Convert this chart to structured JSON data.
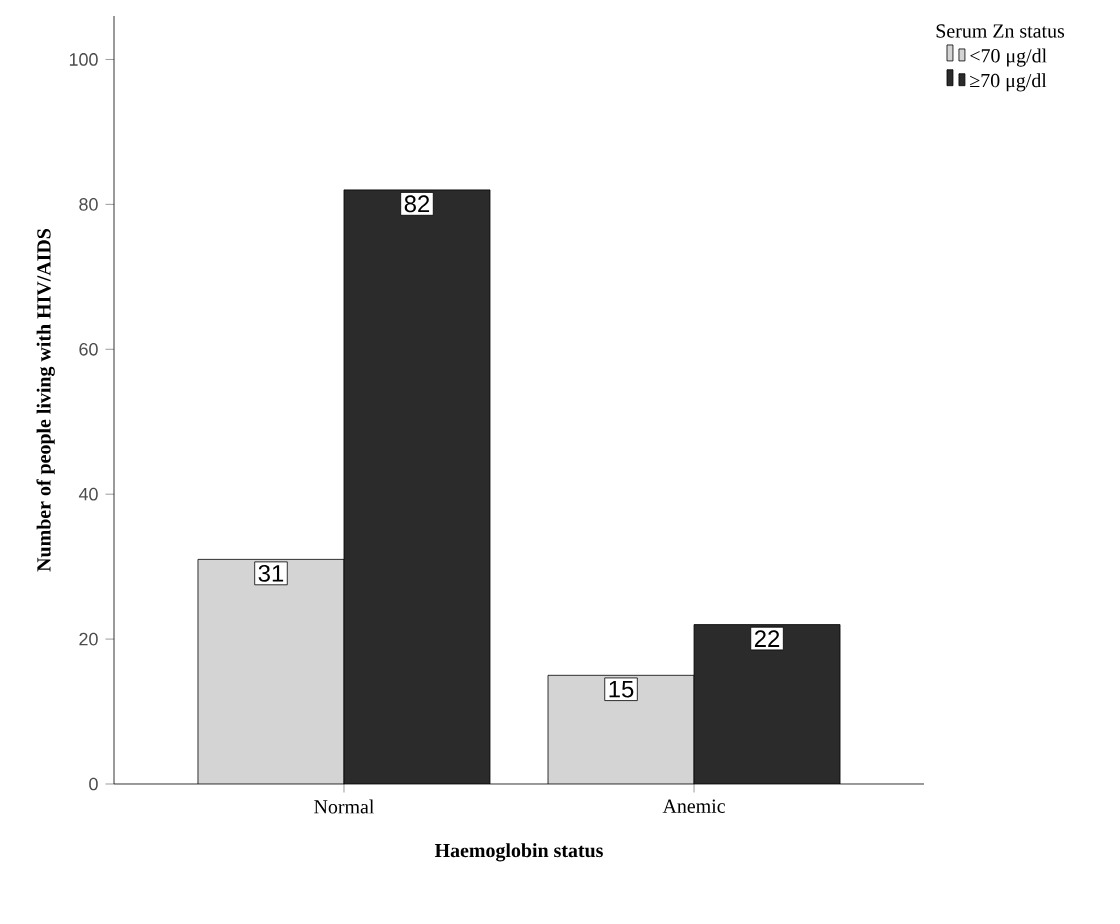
{
  "chart_data": {
    "type": "bar",
    "xlabel": "Haemoglobin status",
    "ylabel": "Number of people living with HIV/AIDS",
    "legend_title": "Serum Zn status",
    "categories": [
      "Normal",
      "Anemic"
    ],
    "series": [
      {
        "name": "<70 μg/dl",
        "color": "#d4d4d4",
        "values": [
          31,
          15
        ]
      },
      {
        "name": "≥70 μg/dl",
        "color": "#2b2b2b",
        "values": [
          82,
          22
        ]
      }
    ],
    "ylim": [
      0,
      106
    ],
    "yticks": [
      0,
      20,
      40,
      60,
      80,
      100
    ],
    "grid": false,
    "legend": "top right",
    "data_labels": true
  }
}
